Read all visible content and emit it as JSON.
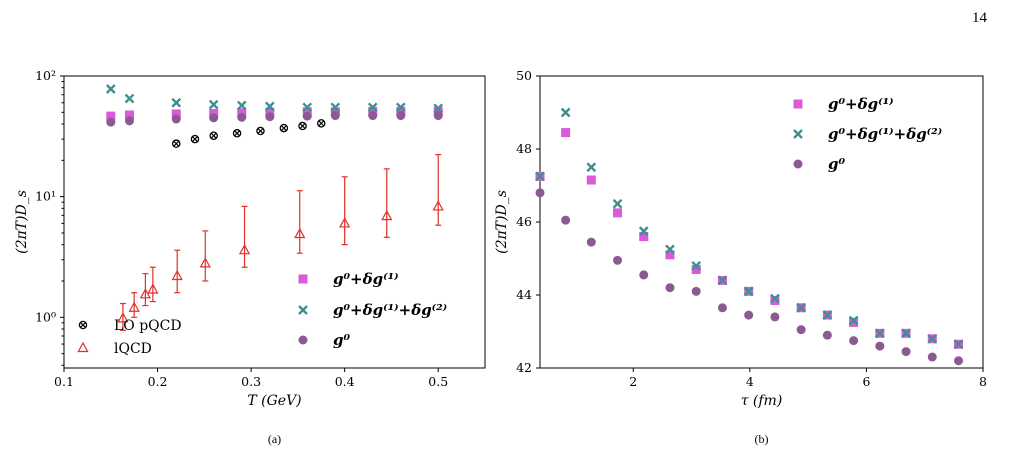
{
  "page_number": "14",
  "colors": {
    "magenta": "#d95bd9",
    "teal": "#3f8f8f",
    "purple": "#8c5a92",
    "red": "#e0302a",
    "black": "#000000"
  },
  "chart_data": [
    {
      "type": "scatter",
      "caption": "(a)",
      "xlabel": "T (GeV)",
      "ylabel": "(2πT)D_s",
      "yscale": "log",
      "xlim": [
        0.1,
        0.55
      ],
      "ylim": [
        0.38,
        100
      ],
      "xticks": [
        0.1,
        0.2,
        0.3,
        0.4,
        0.5
      ],
      "xtick_labels": [
        "0.1",
        "0.2",
        "0.3",
        "0.4",
        "0.5"
      ],
      "ytick_labels": [
        "10⁰",
        "10¹",
        "10²"
      ],
      "legend_lower_left": [
        "LO pQCD",
        "lQCD"
      ],
      "legend_right": [
        "g⁰+δg⁽¹⁾",
        "g⁰+δg⁽¹⁾+δg⁽²⁾",
        "g⁰"
      ],
      "series": [
        {
          "name": "LO pQCD",
          "marker": "x-circle",
          "color": "#000000",
          "x": [
            0.22,
            0.24,
            0.26,
            0.285,
            0.31,
            0.335,
            0.355,
            0.375
          ],
          "y": [
            27.5,
            30,
            32,
            33.5,
            35,
            37,
            38.5,
            40.5
          ]
        },
        {
          "name": "lQCD",
          "marker": "triangle",
          "color": "#e0302a",
          "x": [
            0.163,
            0.175,
            0.187,
            0.195,
            0.221,
            0.251,
            0.293,
            0.352,
            0.4,
            0.445,
            0.5
          ],
          "y": [
            0.98,
            1.2,
            1.55,
            1.7,
            2.2,
            2.8,
            3.6,
            4.9,
            6.0,
            6.9,
            8.3
          ],
          "yerr_low": [
            0.78,
            1.0,
            1.25,
            1.35,
            1.6,
            2.0,
            2.6,
            3.4,
            4.0,
            4.6,
            5.8
          ],
          "yerr_high": [
            1.3,
            1.6,
            2.3,
            2.6,
            3.6,
            5.2,
            8.3,
            11.2,
            14.6,
            17.0,
            22.3
          ]
        },
        {
          "name": "g⁰+δg⁽¹⁾",
          "marker": "square",
          "color": "#d95bd9",
          "x": [
            0.15,
            0.17,
            0.22,
            0.26,
            0.29,
            0.32,
            0.36,
            0.39,
            0.43,
            0.46,
            0.5
          ],
          "y": [
            46.5,
            47.5,
            48.5,
            49.0,
            49.5,
            50.0,
            50.5,
            50.5,
            51.0,
            51.0,
            51.0
          ]
        },
        {
          "name": "g⁰+δg⁽¹⁾+δg⁽²⁾",
          "marker": "x",
          "color": "#3f8f8f",
          "x": [
            0.15,
            0.17,
            0.22,
            0.26,
            0.29,
            0.32,
            0.36,
            0.39,
            0.43,
            0.46,
            0.5
          ],
          "y": [
            78,
            65,
            60,
            58,
            57,
            56,
            55,
            55,
            55,
            55,
            54
          ]
        },
        {
          "name": "g⁰",
          "marker": "circle",
          "color": "#8c5a92",
          "x": [
            0.15,
            0.17,
            0.22,
            0.26,
            0.29,
            0.32,
            0.36,
            0.39,
            0.43,
            0.46,
            0.5
          ],
          "y": [
            41.5,
            42.5,
            44,
            45,
            45.5,
            46,
            46.5,
            47,
            47,
            47,
            47
          ]
        }
      ]
    },
    {
      "type": "scatter",
      "caption": "(b)",
      "xlabel": "τ (fm)",
      "ylabel": "(2πT)D_s",
      "xlim": [
        0.4,
        8
      ],
      "ylim": [
        42,
        50
      ],
      "xticks": [
        2,
        4,
        6,
        8
      ],
      "xtick_labels": [
        "2",
        "4",
        "6",
        "8"
      ],
      "yticks": [
        42,
        44,
        46,
        48,
        50
      ],
      "ytick_labels": [
        "42",
        "44",
        "46",
        "48",
        "50"
      ],
      "legend": [
        "g⁰+δg⁽¹⁾",
        "g⁰+δg⁽¹⁾+δg⁽²⁾",
        "g⁰"
      ],
      "series": [
        {
          "name": "g⁰+δg⁽¹⁾",
          "marker": "square",
          "color": "#d95bd9",
          "x": [
            0.4,
            0.84,
            1.28,
            1.73,
            2.18,
            2.63,
            3.08,
            3.53,
            3.98,
            4.43,
            4.88,
            5.33,
            5.78,
            6.23,
            6.68,
            7.13,
            7.58
          ],
          "y": [
            47.25,
            48.45,
            47.15,
            46.25,
            45.6,
            45.1,
            44.7,
            44.4,
            44.1,
            43.85,
            43.65,
            43.45,
            43.25,
            42.95,
            42.95,
            42.8,
            42.65
          ]
        },
        {
          "name": "g⁰+δg⁽¹⁾+δg⁽²⁾",
          "marker": "x",
          "color": "#3f8f8f",
          "x": [
            0.4,
            0.84,
            1.28,
            1.73,
            2.18,
            2.63,
            3.08,
            3.53,
            3.98,
            4.43,
            4.88,
            5.33,
            5.78,
            6.23,
            6.68,
            7.13,
            7.58
          ],
          "y": [
            47.25,
            49.0,
            47.5,
            46.5,
            45.75,
            45.25,
            44.8,
            44.4,
            44.1,
            43.9,
            43.65,
            43.45,
            43.3,
            42.95,
            42.95,
            42.8,
            42.65
          ]
        },
        {
          "name": "g⁰",
          "marker": "circle",
          "color": "#8c5a92",
          "x": [
            0.4,
            0.84,
            1.28,
            1.73,
            2.18,
            2.63,
            3.08,
            3.53,
            3.98,
            4.43,
            4.88,
            5.33,
            5.78,
            6.23,
            6.68,
            7.13,
            7.58
          ],
          "y": [
            46.8,
            46.05,
            45.45,
            44.95,
            44.55,
            44.2,
            44.1,
            43.65,
            43.45,
            43.4,
            43.05,
            42.9,
            42.75,
            42.6,
            42.45,
            42.3,
            42.2
          ]
        }
      ]
    }
  ]
}
